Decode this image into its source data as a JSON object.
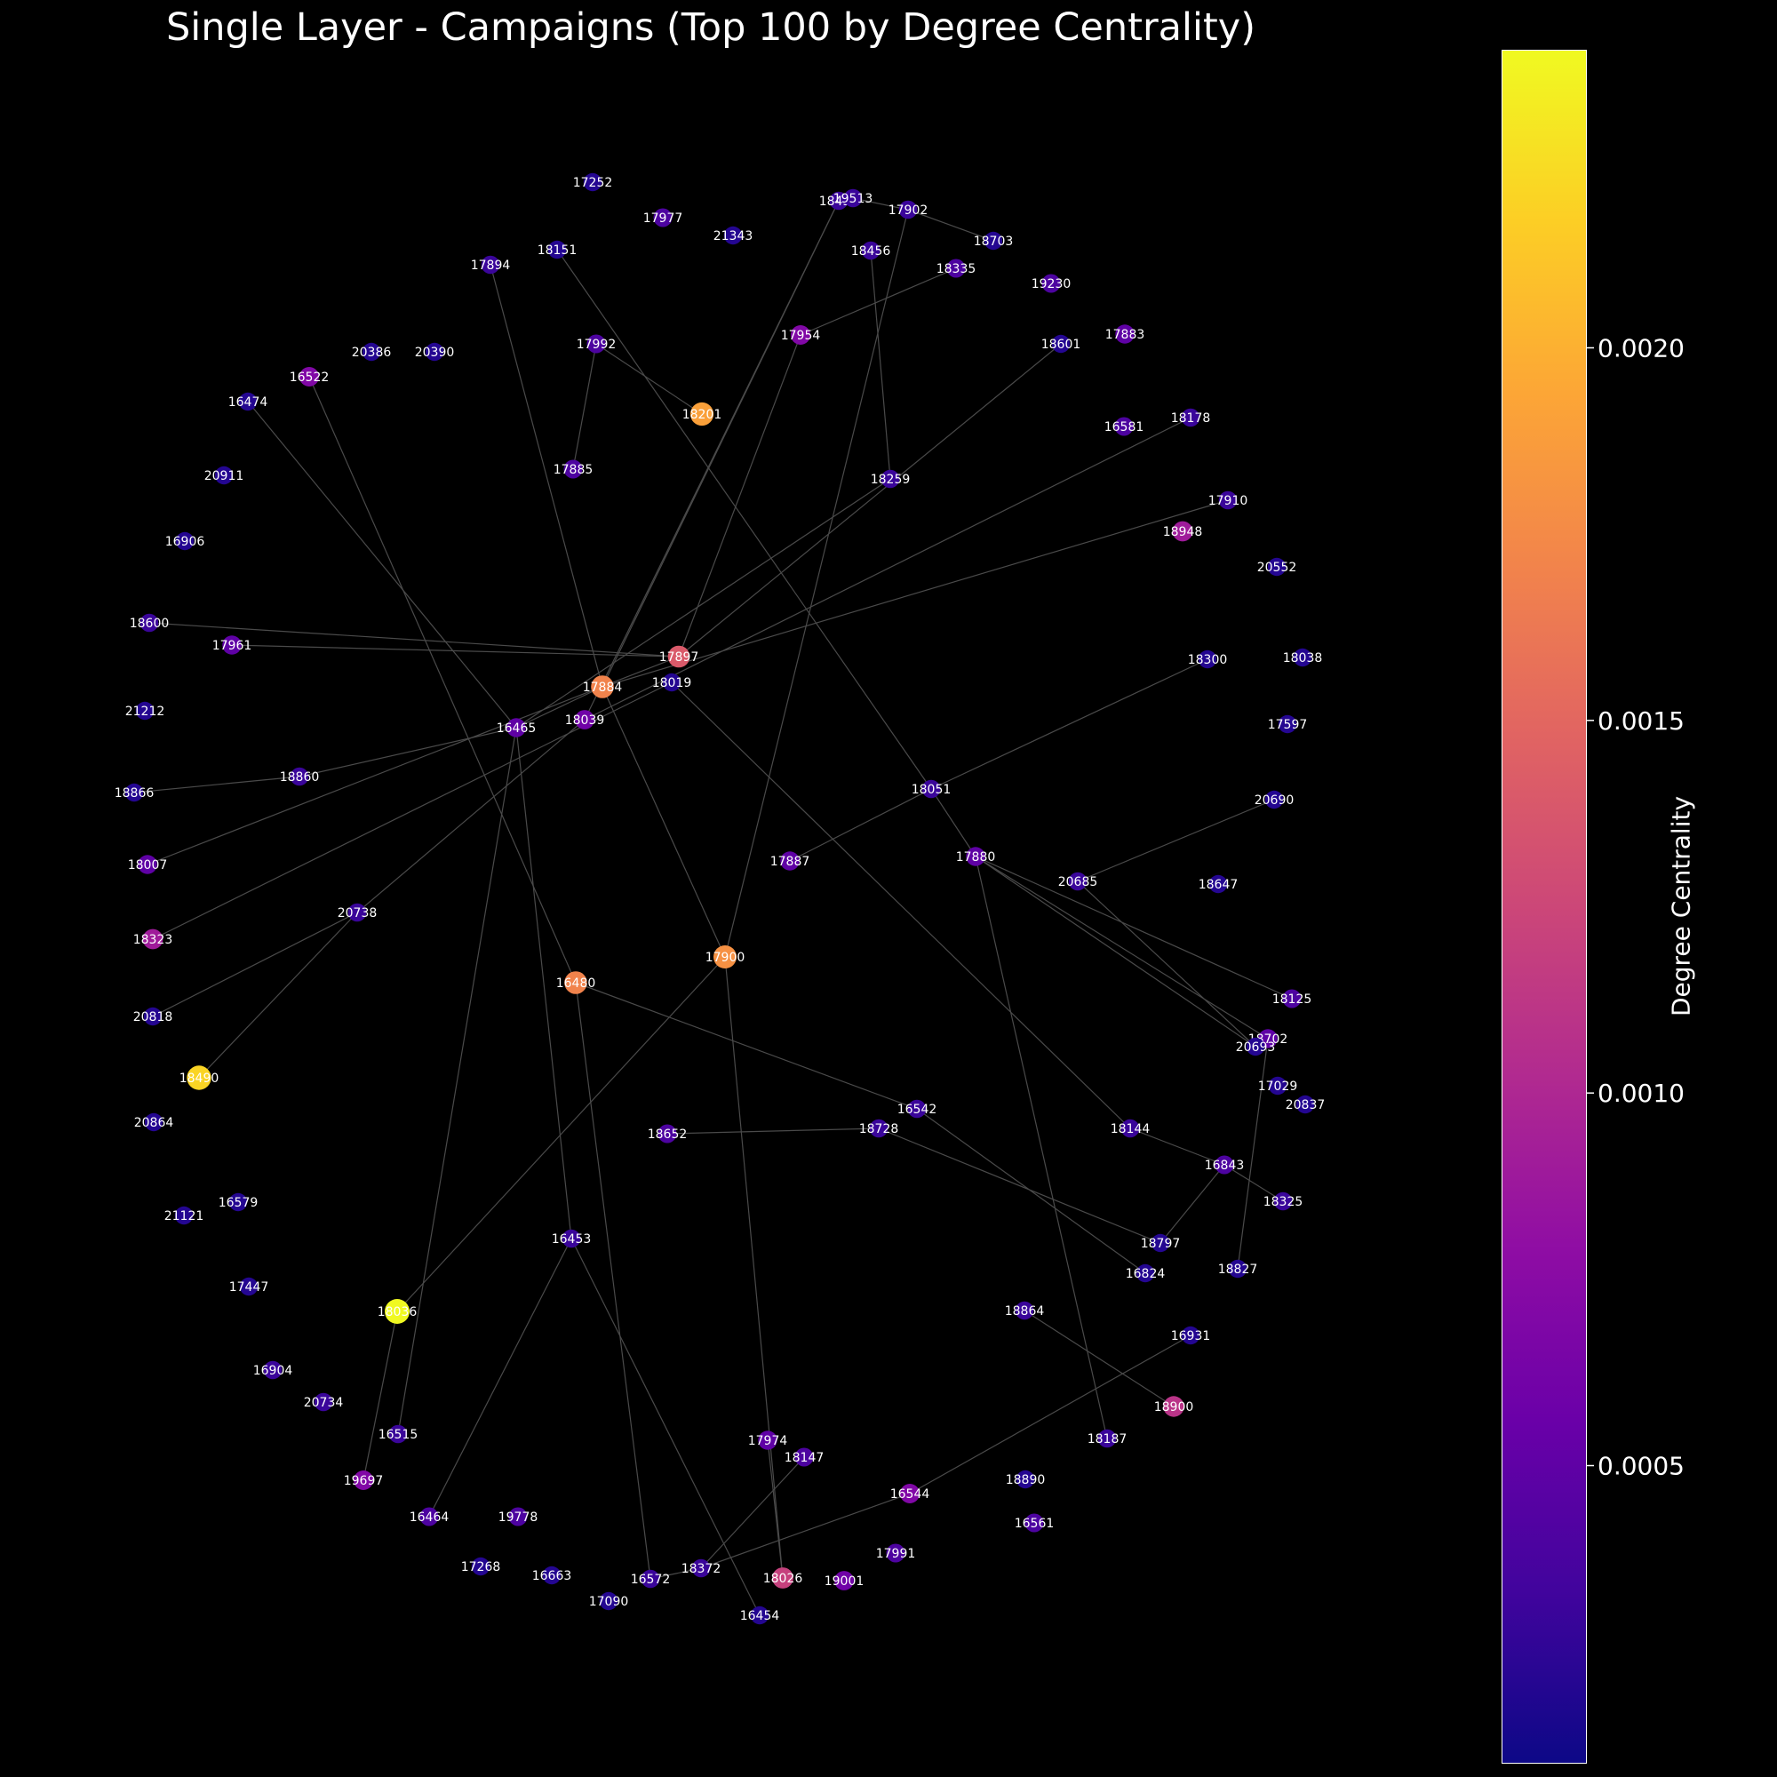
{
  "title": "Single Layer - Campaigns (Top 100 by Degree Centrality)",
  "colorbar": {
    "label": "Degree Centrality",
    "colormap": "plasma",
    "range": [
      0.0001,
      0.0024
    ],
    "ticks": [
      "0.0005",
      "0.0010",
      "0.0015",
      "0.0020"
    ],
    "tick_values": [
      0.0005,
      0.001,
      0.0015,
      0.002
    ]
  },
  "edge_color": "#4a4a4a",
  "chart_data": {
    "type": "network",
    "nodes": [
      {
        "id": "17252",
        "c": 0.0002
      },
      {
        "id": "17977",
        "c": 0.0004
      },
      {
        "id": "21343",
        "c": 0.0002
      },
      {
        "id": "18151",
        "c": 0.0002
      },
      {
        "id": "17894",
        "c": 0.0003
      },
      {
        "id": "18434",
        "c": 0.0003
      },
      {
        "id": "19513",
        "c": 0.0003
      },
      {
        "id": "17902",
        "c": 0.0003
      },
      {
        "id": "18703",
        "c": 0.0002
      },
      {
        "id": "18456",
        "c": 0.0003
      },
      {
        "id": "18335",
        "c": 0.0004
      },
      {
        "id": "19230",
        "c": 0.0004
      },
      {
        "id": "17954",
        "c": 0.0007
      },
      {
        "id": "18601",
        "c": 0.0002
      },
      {
        "id": "17883",
        "c": 0.0005
      },
      {
        "id": "17992",
        "c": 0.0004
      },
      {
        "id": "20386",
        "c": 0.0002
      },
      {
        "id": "20390",
        "c": 0.0002
      },
      {
        "id": "16522",
        "c": 0.0007
      },
      {
        "id": "16474",
        "c": 0.0002
      },
      {
        "id": "18201",
        "c": 0.0019
      },
      {
        "id": "16581",
        "c": 0.0004
      },
      {
        "id": "18178",
        "c": 0.0003
      },
      {
        "id": "17885",
        "c": 0.0004
      },
      {
        "id": "18259",
        "c": 0.0003
      },
      {
        "id": "20911",
        "c": 0.0002
      },
      {
        "id": "17910",
        "c": 0.0003
      },
      {
        "id": "18948",
        "c": 0.0009
      },
      {
        "id": "16906",
        "c": 0.0002
      },
      {
        "id": "20552",
        "c": 0.0002
      },
      {
        "id": "18600",
        "c": 0.0003
      },
      {
        "id": "17961",
        "c": 0.0005
      },
      {
        "id": "17897",
        "c": 0.0014
      },
      {
        "id": "18300",
        "c": 0.0002
      },
      {
        "id": "18038",
        "c": 0.0002
      },
      {
        "id": "17884",
        "c": 0.0017
      },
      {
        "id": "18019",
        "c": 0.0002
      },
      {
        "id": "21212",
        "c": 0.0002
      },
      {
        "id": "16465",
        "c": 0.0005
      },
      {
        "id": "18039",
        "c": 0.0006
      },
      {
        "id": "17597",
        "c": 0.0002
      },
      {
        "id": "18860",
        "c": 0.0003
      },
      {
        "id": "18866",
        "c": 0.0002
      },
      {
        "id": "18051",
        "c": 0.0003
      },
      {
        "id": "20690",
        "c": 0.0002
      },
      {
        "id": "17887",
        "c": 0.0005
      },
      {
        "id": "17880",
        "c": 0.0005
      },
      {
        "id": "18007",
        "c": 0.0005
      },
      {
        "id": "20685",
        "c": 0.0003
      },
      {
        "id": "18647",
        "c": 0.0002
      },
      {
        "id": "20738",
        "c": 0.0003
      },
      {
        "id": "18323",
        "c": 0.0009
      },
      {
        "id": "17900",
        "c": 0.0018
      },
      {
        "id": "16480",
        "c": 0.0017
      },
      {
        "id": "18125",
        "c": 0.0004
      },
      {
        "id": "20818",
        "c": 0.0002
      },
      {
        "id": "18702",
        "c": 0.0005
      },
      {
        "id": "20693",
        "c": 0.0002
      },
      {
        "id": "18490",
        "c": 0.0022
      },
      {
        "id": "17029",
        "c": 0.0002
      },
      {
        "id": "20837",
        "c": 0.0002
      },
      {
        "id": "16542",
        "c": 0.0003
      },
      {
        "id": "20864",
        "c": 0.0002
      },
      {
        "id": "18652",
        "c": 0.0004
      },
      {
        "id": "18728",
        "c": 0.0003
      },
      {
        "id": "18144",
        "c": 0.0003
      },
      {
        "id": "16843",
        "c": 0.0004
      },
      {
        "id": "18325",
        "c": 0.0003
      },
      {
        "id": "21121",
        "c": 0.0002
      },
      {
        "id": "16579",
        "c": 0.0002
      },
      {
        "id": "16453",
        "c": 0.0003
      },
      {
        "id": "18797",
        "c": 0.0002
      },
      {
        "id": "16824",
        "c": 0.0002
      },
      {
        "id": "18827",
        "c": 0.0002
      },
      {
        "id": "17447",
        "c": 0.0002
      },
      {
        "id": "18036",
        "c": 0.0024
      },
      {
        "id": "18864",
        "c": 0.0003
      },
      {
        "id": "16931",
        "c": 0.0002
      },
      {
        "id": "16904",
        "c": 0.0003
      },
      {
        "id": "20734",
        "c": 0.0003
      },
      {
        "id": "18900",
        "c": 0.0011
      },
      {
        "id": "16515",
        "c": 0.0003
      },
      {
        "id": "17974",
        "c": 0.0005
      },
      {
        "id": "18187",
        "c": 0.0003
      },
      {
        "id": "18147",
        "c": 0.0004
      },
      {
        "id": "19697",
        "c": 0.0007
      },
      {
        "id": "16544",
        "c": 0.0007
      },
      {
        "id": "18890",
        "c": 0.0002
      },
      {
        "id": "16464",
        "c": 0.0004
      },
      {
        "id": "19778",
        "c": 0.0004
      },
      {
        "id": "16561",
        "c": 0.0004
      },
      {
        "id": "17991",
        "c": 0.0004
      },
      {
        "id": "17268",
        "c": 0.0002
      },
      {
        "id": "16663",
        "c": 0.0002
      },
      {
        "id": "16572",
        "c": 0.0003
      },
      {
        "id": "18372",
        "c": 0.0003
      },
      {
        "id": "18026",
        "c": 0.0012
      },
      {
        "id": "19001",
        "c": 0.0006
      },
      {
        "id": "17090",
        "c": 0.0002
      },
      {
        "id": "16454",
        "c": 0.0002
      }
    ],
    "edges": [
      [
        "19513",
        "17902"
      ],
      [
        "17902",
        "18703"
      ],
      [
        "17902",
        "17900"
      ],
      [
        "18434",
        "18039"
      ],
      [
        "18434",
        "17884"
      ],
      [
        "18456",
        "18259"
      ],
      [
        "18335",
        "17954"
      ],
      [
        "17954",
        "17897"
      ],
      [
        "18601",
        "17897"
      ],
      [
        "17992",
        "18201"
      ],
      [
        "17992",
        "17885"
      ],
      [
        "16522",
        "16480"
      ],
      [
        "16474",
        "16465"
      ],
      [
        "18151",
        "18051"
      ],
      [
        "17894",
        "17884"
      ],
      [
        "18178",
        "18039"
      ],
      [
        "17910",
        "17884"
      ],
      [
        "18259",
        "16465"
      ],
      [
        "18600",
        "17897"
      ],
      [
        "17961",
        "17897"
      ],
      [
        "17897",
        "18007"
      ],
      [
        "18019",
        "18323"
      ],
      [
        "18019",
        "18144"
      ],
      [
        "17884",
        "17900"
      ],
      [
        "17884",
        "16465"
      ],
      [
        "16465",
        "18860"
      ],
      [
        "18860",
        "18866"
      ],
      [
        "16465",
        "16453"
      ],
      [
        "16465",
        "16515"
      ],
      [
        "18039",
        "20738"
      ],
      [
        "20738",
        "20818"
      ],
      [
        "20738",
        "18490"
      ],
      [
        "18300",
        "18051"
      ],
      [
        "18051",
        "17887"
      ],
      [
        "18051",
        "17880"
      ],
      [
        "17880",
        "18125"
      ],
      [
        "17880",
        "18702"
      ],
      [
        "17880",
        "20693"
      ],
      [
        "17880",
        "18187"
      ],
      [
        "20690",
        "20685"
      ],
      [
        "20685",
        "20693"
      ],
      [
        "17900",
        "18036"
      ],
      [
        "17900",
        "18026"
      ],
      [
        "16480",
        "16542"
      ],
      [
        "16480",
        "16572"
      ],
      [
        "16542",
        "16824"
      ],
      [
        "18652",
        "18728"
      ],
      [
        "18728",
        "18797"
      ],
      [
        "18144",
        "16843"
      ],
      [
        "16843",
        "18325"
      ],
      [
        "16843",
        "18797"
      ],
      [
        "18702",
        "18827"
      ],
      [
        "18036",
        "19697"
      ],
      [
        "16453",
        "16464"
      ],
      [
        "16453",
        "16454"
      ],
      [
        "18864",
        "18900"
      ],
      [
        "16931",
        "16544"
      ],
      [
        "16544",
        "18372"
      ],
      [
        "18372",
        "18147"
      ],
      [
        "18372",
        "16572"
      ],
      [
        "17974",
        "18026"
      ]
    ]
  }
}
